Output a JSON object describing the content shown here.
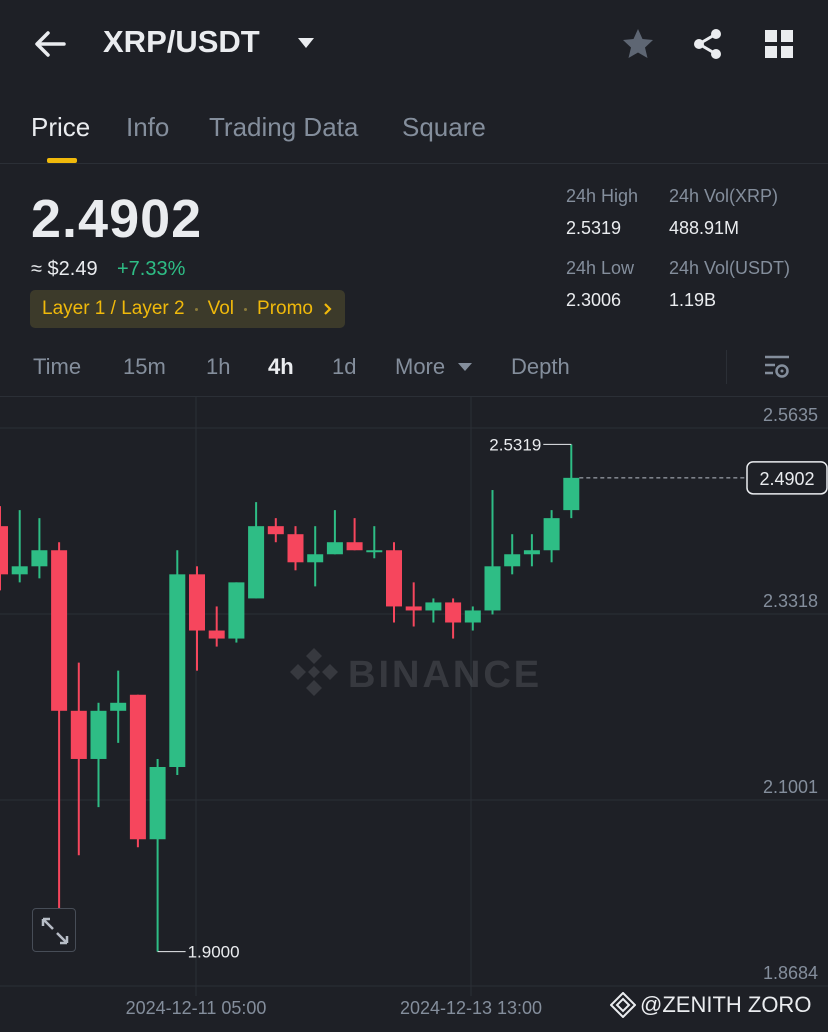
{
  "header": {
    "back_icon": "back-arrow-icon",
    "title": "XRP/USDT",
    "favorite_icon": "star-icon",
    "share_icon": "share-icon",
    "grid_icon": "grid-icon"
  },
  "tabs": [
    {
      "label": "Price",
      "active": true
    },
    {
      "label": "Info",
      "active": false
    },
    {
      "label": "Trading Data",
      "active": false
    },
    {
      "label": "Square",
      "active": false
    }
  ],
  "price": {
    "last": "2.4902",
    "usd": "≈ $2.49",
    "change": "+7.33%",
    "tags": [
      "Layer 1 / Layer 2",
      "Vol",
      "Promo"
    ]
  },
  "stats": {
    "high_label": "24h High",
    "high_value": "2.5319",
    "vol_xrp_label": "24h Vol(XRP)",
    "vol_xrp_value": "488.91M",
    "low_label": "24h Low",
    "low_value": "2.3006",
    "vol_usdt_label": "24h Vol(USDT)",
    "vol_usdt_value": "1.19B"
  },
  "intervals": [
    {
      "label": "Time",
      "active": false
    },
    {
      "label": "15m",
      "active": false
    },
    {
      "label": "1h",
      "active": false
    },
    {
      "label": "4h",
      "active": true
    },
    {
      "label": "1d",
      "active": false
    },
    {
      "label": "More",
      "active": false
    },
    {
      "label": "Depth",
      "active": false
    }
  ],
  "colors": {
    "up": "#2ebd85",
    "down": "#f6465d",
    "accent": "#f0b90b",
    "bg": "#1e2026"
  },
  "chart_data": {
    "type": "candlestick",
    "interval": "4h",
    "y_ticks": [
      "2.5635",
      "2.3318",
      "2.1001",
      "1.8684"
    ],
    "ylim": [
      1.8684,
      2.5635
    ],
    "x_ticks": [
      "2024-12-11 05:00",
      "2024-12-13 13:00"
    ],
    "high_marker": "2.5319",
    "low_marker": "1.9000",
    "last_price_label": "2.4902",
    "watermark": "BINANCE",
    "candles": [
      {
        "o": 2.43,
        "h": 2.455,
        "l": 2.35,
        "c": 2.37
      },
      {
        "o": 2.37,
        "h": 2.45,
        "l": 2.36,
        "c": 2.38
      },
      {
        "o": 2.38,
        "h": 2.44,
        "l": 2.365,
        "c": 2.4
      },
      {
        "o": 2.4,
        "h": 2.41,
        "l": 1.95,
        "c": 2.2
      },
      {
        "o": 2.2,
        "h": 2.26,
        "l": 2.02,
        "c": 2.14
      },
      {
        "o": 2.14,
        "h": 2.21,
        "l": 2.08,
        "c": 2.2
      },
      {
        "o": 2.2,
        "h": 2.25,
        "l": 2.16,
        "c": 2.21
      },
      {
        "o": 2.22,
        "h": 2.22,
        "l": 2.03,
        "c": 2.04
      },
      {
        "o": 2.04,
        "h": 2.14,
        "l": 1.9,
        "c": 2.13
      },
      {
        "o": 2.13,
        "h": 2.4,
        "l": 2.12,
        "c": 2.37
      },
      {
        "o": 2.37,
        "h": 2.38,
        "l": 2.25,
        "c": 2.3
      },
      {
        "o": 2.3,
        "h": 2.33,
        "l": 2.28,
        "c": 2.29
      },
      {
        "o": 2.29,
        "h": 2.36,
        "l": 2.285,
        "c": 2.36
      },
      {
        "o": 2.34,
        "h": 2.46,
        "l": 2.34,
        "c": 2.43
      },
      {
        "o": 2.43,
        "h": 2.44,
        "l": 2.41,
        "c": 2.42
      },
      {
        "o": 2.42,
        "h": 2.43,
        "l": 2.375,
        "c": 2.385
      },
      {
        "o": 2.385,
        "h": 2.43,
        "l": 2.355,
        "c": 2.395
      },
      {
        "o": 2.395,
        "h": 2.45,
        "l": 2.395,
        "c": 2.41
      },
      {
        "o": 2.41,
        "h": 2.44,
        "l": 2.4,
        "c": 2.4
      },
      {
        "o": 2.4,
        "h": 2.43,
        "l": 2.39,
        "c": 2.4
      },
      {
        "o": 2.4,
        "h": 2.41,
        "l": 2.31,
        "c": 2.33
      },
      {
        "o": 2.33,
        "h": 2.36,
        "l": 2.305,
        "c": 2.325
      },
      {
        "o": 2.325,
        "h": 2.34,
        "l": 2.31,
        "c": 2.335
      },
      {
        "o": 2.335,
        "h": 2.34,
        "l": 2.29,
        "c": 2.31
      },
      {
        "o": 2.31,
        "h": 2.33,
        "l": 2.3,
        "c": 2.325
      },
      {
        "o": 2.325,
        "h": 2.475,
        "l": 2.32,
        "c": 2.38
      },
      {
        "o": 2.38,
        "h": 2.42,
        "l": 2.37,
        "c": 2.395
      },
      {
        "o": 2.395,
        "h": 2.42,
        "l": 2.38,
        "c": 2.4
      },
      {
        "o": 2.4,
        "h": 2.45,
        "l": 2.385,
        "c": 2.44
      },
      {
        "o": 2.45,
        "h": 2.5319,
        "l": 2.44,
        "c": 2.4902
      }
    ]
  },
  "credit": {
    "icon": "binance-diamond-icon",
    "handle": "@ZENITH ZORO"
  }
}
